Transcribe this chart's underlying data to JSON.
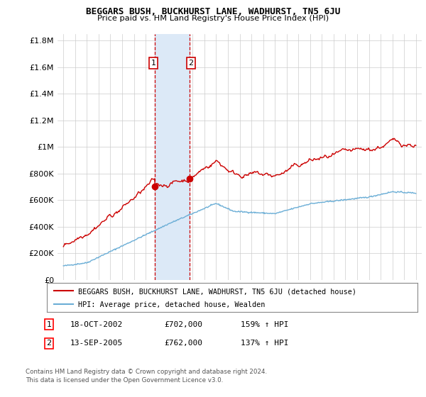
{
  "title": "BEGGARS BUSH, BUCKHURST LANE, WADHURST, TN5 6JU",
  "subtitle": "Price paid vs. HM Land Registry's House Price Index (HPI)",
  "legend_line1": "BEGGARS BUSH, BUCKHURST LANE, WADHURST, TN5 6JU (detached house)",
  "legend_line2": "HPI: Average price, detached house, Wealden",
  "footnote1": "Contains HM Land Registry data © Crown copyright and database right 2024.",
  "footnote2": "This data is licensed under the Open Government Licence v3.0.",
  "transaction1": {
    "label": "1",
    "date": "18-OCT-2002",
    "price": "£702,000",
    "hpi_change": "159% ↑ HPI"
  },
  "transaction2": {
    "label": "2",
    "date": "13-SEP-2005",
    "price": "£762,000",
    "hpi_change": "137% ↑ HPI"
  },
  "purchase1_year": 2002.8,
  "purchase2_year": 2005.72,
  "purchase1_price": 702000,
  "purchase2_price": 762000,
  "hpi_color": "#6baed6",
  "price_color": "#cc0000",
  "shading_color": "#dce9f7",
  "highlight_color": "#cc0000",
  "background_color": "#ffffff",
  "ylim": [
    0,
    1850000
  ],
  "yticks": [
    0,
    200000,
    400000,
    600000,
    800000,
    1000000,
    1200000,
    1400000,
    1600000,
    1800000
  ],
  "ytick_labels": [
    "£0",
    "£200K",
    "£400K",
    "£600K",
    "£800K",
    "£1M",
    "£1.2M",
    "£1.4M",
    "£1.6M",
    "£1.8M"
  ]
}
